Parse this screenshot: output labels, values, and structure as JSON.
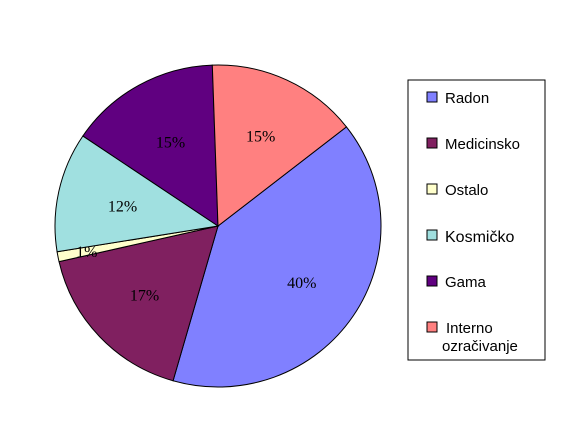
{
  "chart_data": {
    "type": "pie",
    "categories": [
      "Radon",
      "Medicinsko",
      "Ostalo",
      "Kosmičko",
      "Gama",
      "Interno ozračivanje"
    ],
    "values": [
      40,
      17,
      1,
      12,
      15,
      15
    ],
    "labels": [
      "40%",
      "17%",
      "1%",
      "12%",
      "15%",
      "15%"
    ],
    "colors": [
      "#8080ff",
      "#802060",
      "#ffffcc",
      "#a0e0e0",
      "#600080",
      "#ff8080"
    ],
    "legend": {
      "placement": "right",
      "entries": [
        {
          "label": "Radon",
          "color": "#8080ff"
        },
        {
          "label": "Medicinsko",
          "color": "#802060"
        },
        {
          "label": "Ostalo",
          "color": "#ffffcc"
        },
        {
          "label": "Kosmičko",
          "color": "#a0e0e0"
        },
        {
          "label": "Gama",
          "color": "#600080"
        },
        {
          "label_line1": "Interno",
          "label_line2": "ozračivanje",
          "color": "#ff8080"
        }
      ]
    }
  }
}
